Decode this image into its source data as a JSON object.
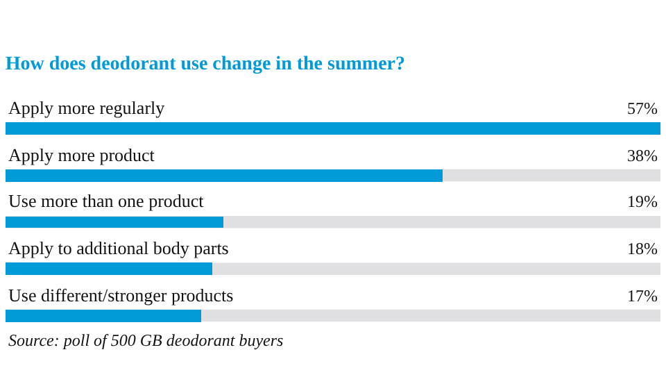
{
  "chart_data": {
    "type": "bar",
    "orientation": "horizontal",
    "title": "How does deodorant use change in the summer?",
    "categories": [
      "Apply more regularly",
      "Apply more product",
      "Use more than one product",
      "Apply to additional body parts",
      "Use different/stronger products"
    ],
    "values": [
      57,
      38,
      19,
      18,
      17
    ],
    "value_labels": [
      "57%",
      "38%",
      "19%",
      "18%",
      "17%"
    ],
    "color": "#009ad9",
    "xlim": [
      0,
      57
    ],
    "tick_labels": false,
    "annotations": [
      "Source: poll of 500 GB deodorant buyers"
    ]
  }
}
